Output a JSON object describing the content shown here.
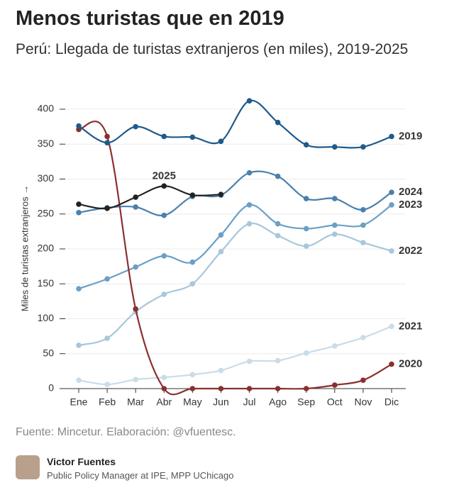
{
  "chart_data": {
    "type": "line",
    "title": "Menos turistas que en 2019",
    "subtitle": "Perú: Llegada de turistas extranjeros (en miles), 2019-2025",
    "y_label": "Miles de turistas extranjeros →",
    "categories": [
      "Ene",
      "Feb",
      "Mar",
      "Abr",
      "May",
      "Jun",
      "Jul",
      "Ago",
      "Sep",
      "Oct",
      "Nov",
      "Dic"
    ],
    "ylim": [
      0,
      400
    ],
    "yticks": [
      0,
      50,
      100,
      150,
      200,
      250,
      300,
      350,
      400
    ],
    "grid": true,
    "series": [
      {
        "name": "2021",
        "color": "#c9dce9",
        "values": [
          12,
          6,
          13,
          16,
          20,
          26,
          39,
          40,
          51,
          61,
          73,
          89
        ]
      },
      {
        "name": "2022",
        "color": "#a7c7dc",
        "values": [
          62,
          72,
          110,
          135,
          150,
          196,
          236,
          219,
          204,
          221,
          209,
          197
        ]
      },
      {
        "name": "2023",
        "color": "#6b9fc5",
        "values": [
          143,
          157,
          174,
          190,
          181,
          220,
          263,
          236,
          229,
          234,
          234,
          263
        ]
      },
      {
        "name": "2024",
        "color": "#4a80ad",
        "values": [
          252,
          259,
          260,
          248,
          275,
          277,
          309,
          304,
          272,
          272,
          256,
          281
        ]
      },
      {
        "name": "2020",
        "color": "#8b2f2f",
        "values": [
          371,
          361,
          114,
          0,
          0,
          0,
          0,
          0,
          0,
          5,
          12,
          35
        ]
      },
      {
        "name": "2019",
        "color": "#1f5a8a",
        "values": [
          376,
          352,
          375,
          361,
          360,
          354,
          412,
          381,
          349,
          346,
          346,
          361
        ]
      },
      {
        "name": "2025",
        "color": "#222222",
        "values": [
          264,
          258,
          274,
          290,
          277,
          278,
          null,
          null,
          null,
          null,
          null,
          null
        ]
      }
    ]
  },
  "source": "Fuente: Mincetur. Elaboración: @vfuentesc.",
  "author": {
    "name": "Victor Fuentes",
    "role": "Public Policy Manager at IPE, MPP UChicago"
  }
}
